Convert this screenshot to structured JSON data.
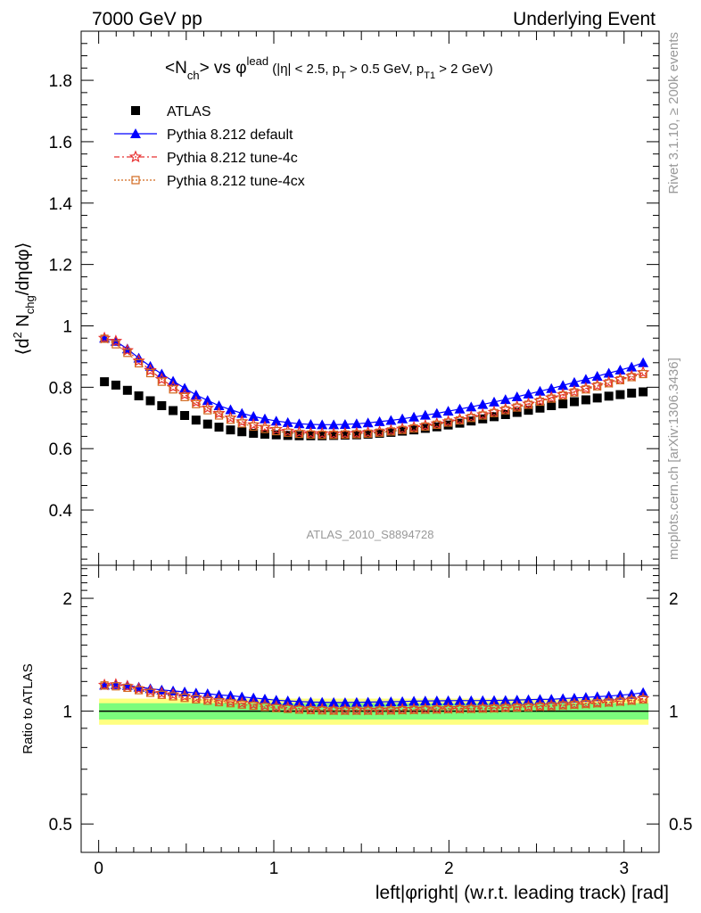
{
  "header": {
    "left": "7000 GeV pp",
    "right": "Underlying Event"
  },
  "side_labels": {
    "rivet": "Rivet 3.1.10, ≥ 200k events",
    "mcplots": "mcplots.cern.ch [arXiv:1306.3436]"
  },
  "main_title": {
    "quantity_main": "<N",
    "quantity_sub": "ch",
    "quantity_end": "> vs φ",
    "quantity_sup": "lead",
    "cuts_a": "(|η| < 2.5, p",
    "cuts_sub1": "T",
    "cuts_b": " > 0.5 GeV, p",
    "cuts_sub2": "T1",
    "cuts_c": " > 2 GeV)"
  },
  "analysis_tag": "ATLAS_2010_S8894728",
  "axes": {
    "ylabel_top": "⟨d² N_chg/dηdφ⟩",
    "ylabel_bottom": "Ratio to ATLAS",
    "xlabel": "left|φright| (w.r.t. leading track) [rad]"
  },
  "colors": {
    "atlas": "#000000",
    "default": "#0000ff",
    "tune4c": "#e83030",
    "tune4cx": "#d2691e",
    "band_inner": "#7cfc7c",
    "band_outer": "#ffff80"
  },
  "legend": [
    {
      "label": "ATLAS",
      "marker": "square"
    },
    {
      "label": "Pythia 8.212 default",
      "marker": "triangle"
    },
    {
      "label": "Pythia 8.212 tune-4c",
      "marker": "star"
    },
    {
      "label": "Pythia 8.212 tune-4cx",
      "marker": "open-square"
    }
  ],
  "chart_data": [
    {
      "type": "scatter",
      "panel": "main",
      "xlim": [
        -0.1,
        3.2
      ],
      "ylim": [
        0.22,
        1.96
      ],
      "yticks": [
        0.4,
        0.6,
        0.8,
        1,
        1.2,
        1.4,
        1.6,
        1.8
      ],
      "ytick_labels": [
        "0.4",
        "0.6",
        "0.8",
        "1",
        "1.2",
        "1.4",
        "1.6",
        "1.8"
      ],
      "legend_position": "top-left",
      "x": [
        0.033,
        0.098,
        0.164,
        0.229,
        0.295,
        0.36,
        0.425,
        0.491,
        0.556,
        0.622,
        0.687,
        0.753,
        0.818,
        0.884,
        0.949,
        1.014,
        1.08,
        1.145,
        1.211,
        1.276,
        1.342,
        1.407,
        1.473,
        1.538,
        1.604,
        1.669,
        1.734,
        1.8,
        1.865,
        1.931,
        1.996,
        2.062,
        2.127,
        2.193,
        2.258,
        2.323,
        2.389,
        2.454,
        2.52,
        2.585,
        2.651,
        2.716,
        2.782,
        2.847,
        2.913,
        2.978,
        3.043,
        3.109
      ],
      "series": [
        {
          "name": "ATLAS",
          "values": [
            0.818,
            0.807,
            0.79,
            0.772,
            0.756,
            0.74,
            0.724,
            0.708,
            0.693,
            0.68,
            0.67,
            0.661,
            0.655,
            0.65,
            0.647,
            0.645,
            0.643,
            0.642,
            0.642,
            0.642,
            0.643,
            0.644,
            0.645,
            0.647,
            0.65,
            0.653,
            0.657,
            0.661,
            0.666,
            0.671,
            0.677,
            0.683,
            0.69,
            0.697,
            0.704,
            0.711,
            0.718,
            0.725,
            0.732,
            0.74,
            0.746,
            0.753,
            0.759,
            0.765,
            0.771,
            0.776,
            0.781,
            0.785
          ]
        },
        {
          "name": "Pythia 8.212 default",
          "values": [
            0.96,
            0.95,
            0.925,
            0.895,
            0.868,
            0.843,
            0.82,
            0.797,
            0.775,
            0.757,
            0.74,
            0.727,
            0.715,
            0.705,
            0.697,
            0.69,
            0.685,
            0.681,
            0.679,
            0.678,
            0.678,
            0.679,
            0.681,
            0.684,
            0.688,
            0.692,
            0.697,
            0.703,
            0.709,
            0.715,
            0.722,
            0.729,
            0.736,
            0.744,
            0.752,
            0.76,
            0.769,
            0.778,
            0.787,
            0.796,
            0.806,
            0.816,
            0.826,
            0.836,
            0.846,
            0.856,
            0.866,
            0.88
          ]
        },
        {
          "name": "Pythia 8.212 tune-4c",
          "values": [
            0.96,
            0.95,
            0.92,
            0.886,
            0.855,
            0.826,
            0.801,
            0.776,
            0.752,
            0.732,
            0.715,
            0.7,
            0.688,
            0.678,
            0.67,
            0.663,
            0.657,
            0.653,
            0.65,
            0.649,
            0.648,
            0.649,
            0.65,
            0.652,
            0.655,
            0.659,
            0.664,
            0.669,
            0.675,
            0.681,
            0.688,
            0.695,
            0.703,
            0.711,
            0.719,
            0.728,
            0.737,
            0.746,
            0.756,
            0.766,
            0.776,
            0.786,
            0.796,
            0.806,
            0.816,
            0.826,
            0.836,
            0.848
          ]
        },
        {
          "name": "Pythia 8.212 tune-4cx",
          "values": [
            0.958,
            0.94,
            0.912,
            0.878,
            0.846,
            0.818,
            0.793,
            0.768,
            0.745,
            0.725,
            0.708,
            0.694,
            0.682,
            0.672,
            0.664,
            0.657,
            0.652,
            0.648,
            0.646,
            0.645,
            0.645,
            0.646,
            0.647,
            0.649,
            0.652,
            0.656,
            0.661,
            0.666,
            0.672,
            0.678,
            0.685,
            0.692,
            0.7,
            0.708,
            0.716,
            0.725,
            0.734,
            0.743,
            0.753,
            0.763,
            0.773,
            0.783,
            0.793,
            0.803,
            0.813,
            0.823,
            0.833,
            0.843
          ]
        }
      ]
    },
    {
      "type": "scatter",
      "panel": "ratio",
      "xlabel": "left|φright| (w.r.t. leading track) [rad]",
      "ylabel": "Ratio to ATLAS",
      "xlim": [
        -0.1,
        3.2
      ],
      "ylim": [
        0.42,
        2.45
      ],
      "yscale": "log",
      "yticks": [
        0.5,
        1,
        2
      ],
      "ytick_labels": [
        "0.5",
        "1",
        "2"
      ],
      "xticks": [
        0,
        1,
        2,
        3
      ],
      "xtick_labels": [
        "0",
        "1",
        "2",
        "3"
      ],
      "band": {
        "inner": [
          0.95,
          1.05
        ],
        "outer": [
          0.92,
          1.08
        ]
      },
      "reference_line": 1
    }
  ]
}
